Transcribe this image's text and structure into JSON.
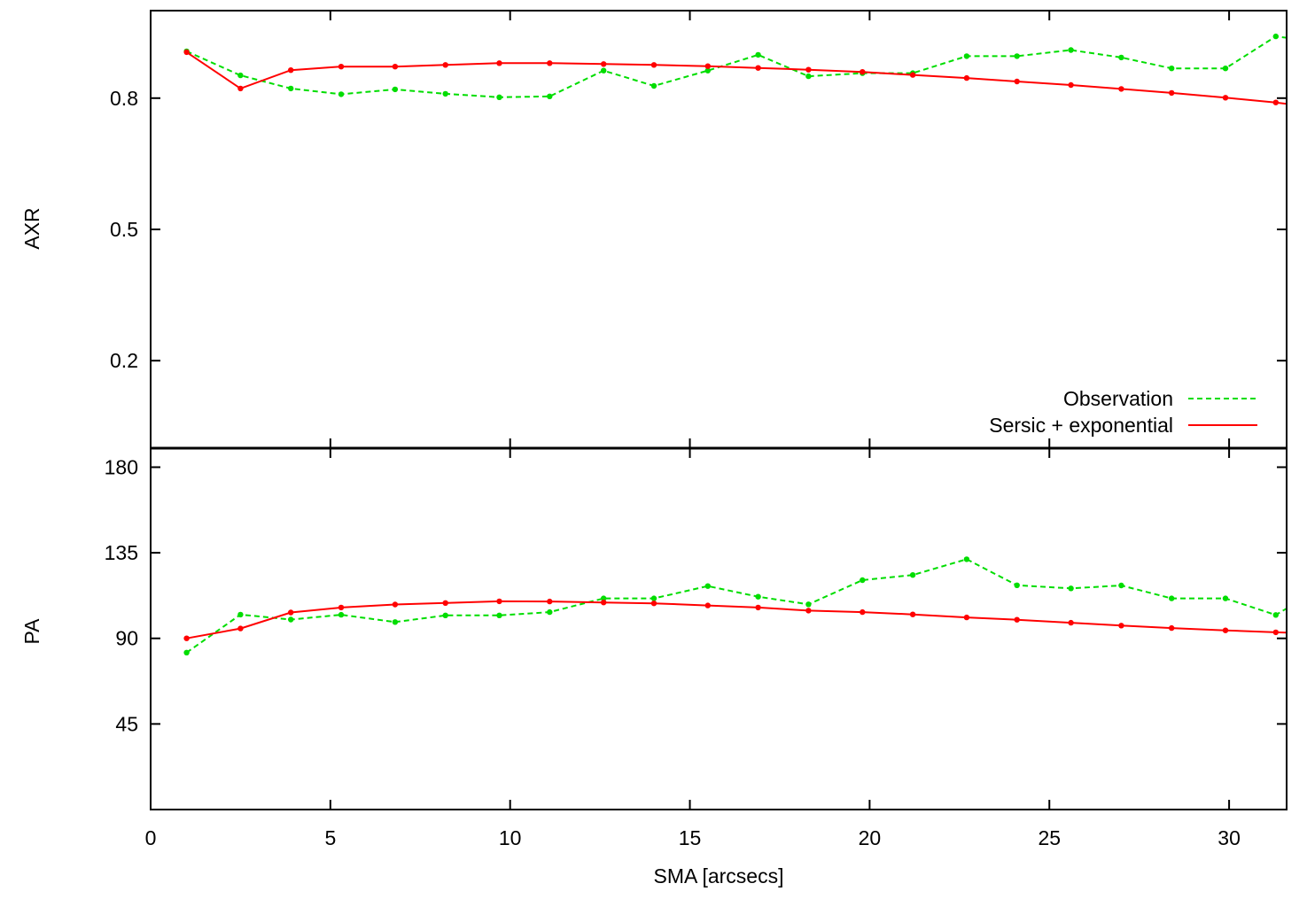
{
  "chart_data": [
    {
      "type": "line",
      "panel": "top",
      "xlabel": "",
      "ylabel": "AXR",
      "xlim": [
        0,
        31.6
      ],
      "ylim": [
        0,
        1.0
      ],
      "yticks": [
        {
          "value": 0.2,
          "label": "0.2"
        },
        {
          "value": 0.5,
          "label": "0.5"
        },
        {
          "value": 0.8,
          "label": "0.8"
        }
      ],
      "legend": {
        "placement": "bottom-right"
      },
      "series": [
        {
          "name": "Observation",
          "style": "dashed",
          "color": "#00dd00",
          "x": [
            1.0,
            2.5,
            3.9,
            5.3,
            6.8,
            8.2,
            9.7,
            11.1,
            12.6,
            14.0,
            15.5,
            16.9,
            18.3,
            19.8,
            21.2,
            22.7,
            24.1,
            25.6,
            27.0,
            28.4,
            29.9,
            31.3,
            31.6
          ],
          "y": [
            0.907,
            0.852,
            0.822,
            0.809,
            0.82,
            0.81,
            0.802,
            0.804,
            0.863,
            0.828,
            0.863,
            0.899,
            0.85,
            0.857,
            0.857,
            0.896,
            0.896,
            0.91,
            0.893,
            0.868,
            0.868,
            0.941,
            0.938
          ]
        },
        {
          "name": "Sersic + exponential",
          "style": "solid",
          "color": "#ff0000",
          "x": [
            1.0,
            2.5,
            3.9,
            5.3,
            6.8,
            8.2,
            9.7,
            11.1,
            12.6,
            14.0,
            15.5,
            16.9,
            18.3,
            19.8,
            21.2,
            22.7,
            24.1,
            25.6,
            27.0,
            28.4,
            29.9,
            31.3,
            31.6
          ],
          "y": [
            0.905,
            0.822,
            0.864,
            0.872,
            0.872,
            0.876,
            0.88,
            0.88,
            0.878,
            0.876,
            0.873,
            0.869,
            0.865,
            0.86,
            0.853,
            0.846,
            0.838,
            0.83,
            0.821,
            0.812,
            0.801,
            0.79,
            0.787
          ]
        }
      ]
    },
    {
      "type": "line",
      "panel": "bottom",
      "xlabel": "SMA [arcsecs]",
      "ylabel": "PA",
      "xlim": [
        0,
        31.6
      ],
      "ylim": [
        0,
        190
      ],
      "xticks": [
        {
          "value": 0,
          "label": "0"
        },
        {
          "value": 5,
          "label": "5"
        },
        {
          "value": 10,
          "label": "10"
        },
        {
          "value": 15,
          "label": "15"
        },
        {
          "value": 20,
          "label": "20"
        },
        {
          "value": 25,
          "label": "25"
        },
        {
          "value": 30,
          "label": "30"
        }
      ],
      "yticks": [
        {
          "value": 45,
          "label": "45"
        },
        {
          "value": 90,
          "label": "90"
        },
        {
          "value": 135,
          "label": "135"
        },
        {
          "value": 180,
          "label": "180"
        }
      ],
      "series": [
        {
          "name": "Observation",
          "style": "dashed",
          "color": "#00dd00",
          "x": [
            1.0,
            2.5,
            3.9,
            5.3,
            6.8,
            8.2,
            9.7,
            11.1,
            12.6,
            14.0,
            15.5,
            16.9,
            18.3,
            19.8,
            21.2,
            22.7,
            24.1,
            25.6,
            27.0,
            28.4,
            29.9,
            31.3,
            31.6
          ],
          "y": [
            82.5,
            102.5,
            99.9,
            102.4,
            98.6,
            102.1,
            102.1,
            103.8,
            111.0,
            111.0,
            117.5,
            111.9,
            107.9,
            120.6,
            123.3,
            131.6,
            117.9,
            116.3,
            117.8,
            111.0,
            111.0,
            102.3,
            105.7
          ]
        },
        {
          "name": "Sersic + exponential",
          "style": "solid",
          "color": "#ff0000",
          "x": [
            1.0,
            2.5,
            3.9,
            5.3,
            6.8,
            8.2,
            9.7,
            11.1,
            12.6,
            14.0,
            15.5,
            16.9,
            18.3,
            19.8,
            21.2,
            22.7,
            24.1,
            25.6,
            27.0,
            28.4,
            29.9,
            31.3,
            31.6
          ],
          "y": [
            90.0,
            95.2,
            103.6,
            106.2,
            107.8,
            108.6,
            109.5,
            109.4,
            108.9,
            108.4,
            107.3,
            106.2,
            104.6,
            103.8,
            102.6,
            101.0,
            99.8,
            98.2,
            96.7,
            95.4,
            94.2,
            93.2,
            93.0
          ]
        }
      ]
    }
  ]
}
